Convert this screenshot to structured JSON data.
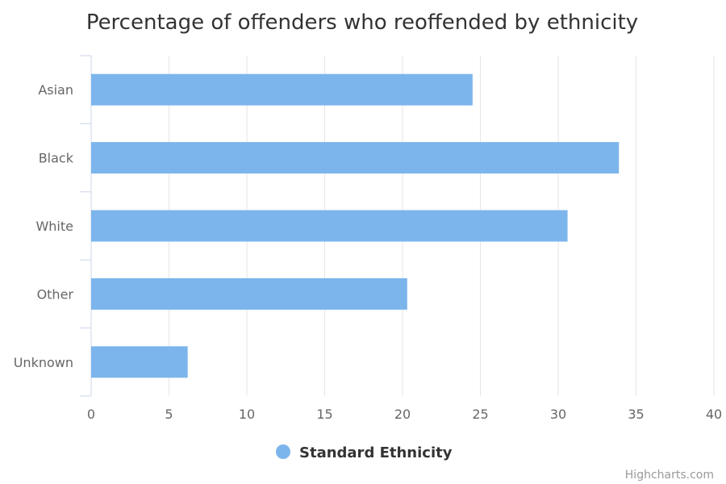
{
  "chart_data": {
    "type": "bar",
    "orientation": "horizontal",
    "title": "Percentage of offenders who reoffended by ethnicity",
    "categories": [
      "Asian",
      "Black",
      "White",
      "Other",
      "Unknown"
    ],
    "series": [
      {
        "name": "Standard Ethnicity",
        "color": "#7cb5ec",
        "values": [
          24.5,
          33.9,
          30.6,
          20.3,
          6.2
        ]
      }
    ],
    "xlim": [
      0,
      40
    ],
    "x_ticks": [
      "0",
      "5",
      "10",
      "15",
      "20",
      "25",
      "30",
      "35",
      "40"
    ],
    "grid": true,
    "legend": {
      "placement": "bottom-center",
      "label": "Standard Ethnicity"
    }
  },
  "credits": "Highcharts.com"
}
